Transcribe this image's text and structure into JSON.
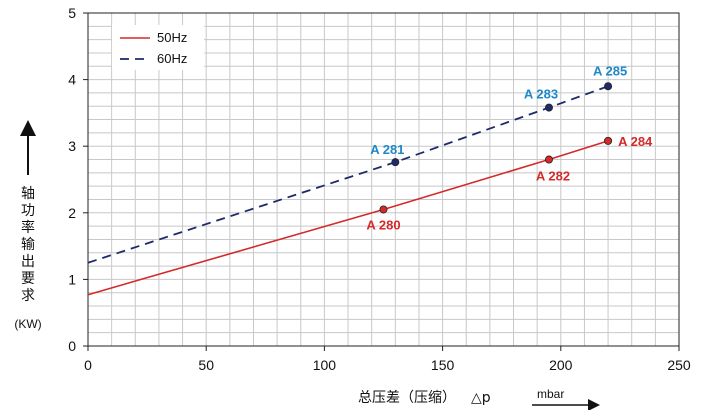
{
  "chart_data": {
    "type": "line",
    "xlabel": "总压差（压缩）",
    "xlabel_symbol": "△p",
    "x_unit": "mbar",
    "ylabel": "轴功率输出要求",
    "y_unit": "(KW)",
    "xlim": [
      0,
      250
    ],
    "ylim": [
      0,
      5
    ],
    "x_ticks": [
      0,
      50,
      100,
      150,
      200,
      250
    ],
    "y_ticks": [
      0,
      1,
      2,
      3,
      4,
      5
    ],
    "grid": true,
    "legend_position": "top-left",
    "series": [
      {
        "name": "50Hz",
        "style": "solid",
        "color": "#d42a2a",
        "x": [
          0,
          125,
          195,
          220
        ],
        "y": [
          0.77,
          2.05,
          2.8,
          3.08
        ]
      },
      {
        "name": "60Hz",
        "style": "dashed",
        "color": "#1f2a6b",
        "x": [
          0,
          130,
          195,
          220
        ],
        "y": [
          1.25,
          2.76,
          3.58,
          3.9
        ]
      }
    ],
    "annotations": [
      {
        "text": "A 280",
        "x": 125,
        "y": 2.05,
        "series": 0,
        "color": "#d42a2a"
      },
      {
        "text": "A 282",
        "x": 195,
        "y": 2.8,
        "series": 0,
        "color": "#d42a2a"
      },
      {
        "text": "A 284",
        "x": 220,
        "y": 3.08,
        "series": 0,
        "color": "#d42a2a"
      },
      {
        "text": "A 281",
        "x": 130,
        "y": 2.76,
        "series": 1,
        "color": "#1e88c8"
      },
      {
        "text": "A 283",
        "x": 195,
        "y": 3.58,
        "series": 1,
        "color": "#1e88c8"
      },
      {
        "text": "A 285",
        "x": 220,
        "y": 3.9,
        "series": 1,
        "color": "#1e88c8"
      }
    ]
  }
}
